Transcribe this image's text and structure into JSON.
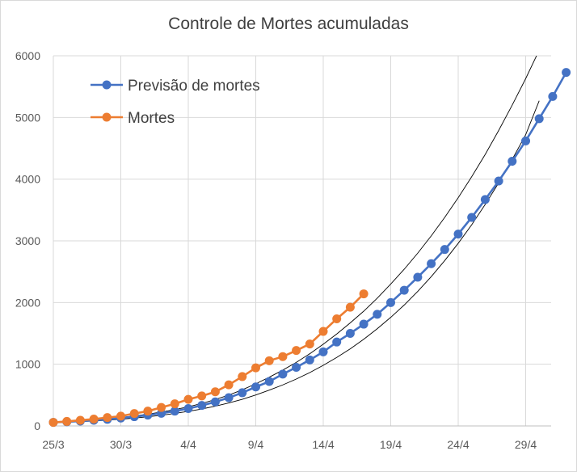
{
  "chart_data": {
    "type": "line",
    "title": "Controle de Mortes acumuladas",
    "xlabel": "",
    "ylabel": "",
    "ylim": [
      0,
      6000
    ],
    "y_ticks": [
      "0",
      "1000",
      "2000",
      "3000",
      "4000",
      "5000",
      "6000"
    ],
    "x_ticks": [
      "25/3",
      "30/3",
      "4/4",
      "9/4",
      "14/4",
      "19/4",
      "24/4",
      "29/4"
    ],
    "x_start": "25/3",
    "x_end": "30/4",
    "grid": true,
    "legend_position": "top-left",
    "series": [
      {
        "name": "Previsão de mortes",
        "color": "#4472c4",
        "values": [
          58,
          67,
          78,
          92,
          107,
          128,
          150,
          175,
          205,
          240,
          282,
          332,
          390,
          458,
          538,
          632,
          720,
          840,
          950,
          1070,
          1200,
          1360,
          1500,
          1650,
          1810,
          2000,
          2200,
          2410,
          2630,
          2860,
          3110,
          3380,
          3670,
          3970,
          4290,
          4620,
          4980,
          5340,
          5730
        ]
      },
      {
        "name": "Mortes",
        "color": "#ed7d31",
        "values": [
          57,
          73,
          92,
          111,
          136,
          159,
          201,
          240,
          299,
          359,
          431,
          486,
          553,
          667,
          800,
          941,
          1057,
          1124,
          1223,
          1328,
          1532,
          1736,
          1924,
          2141
        ]
      },
      {
        "name": "",
        "color": "#000000",
        "values": [
          60,
          70,
          82,
          97,
          115,
          137,
          162,
          191,
          225,
          264,
          310,
          364,
          428,
          500,
          585,
          683,
          790,
          905,
          1030,
          1170,
          1325,
          1490,
          1670,
          1860,
          2070,
          2300,
          2540,
          2800,
          3080,
          3380,
          3700,
          4040,
          4400,
          4790,
          5200,
          5630,
          6090
        ]
      },
      {
        "name": "",
        "color": "#000000",
        "values": [
          53,
          60,
          69,
          80,
          93,
          109,
          127,
          148,
          173,
          202,
          236,
          275,
          320,
          372,
          432,
          502,
          580,
          665,
          760,
          865,
          983,
          1110,
          1250,
          1405,
          1575,
          1760,
          1960,
          2180,
          2420,
          2680,
          2960,
          3260,
          3590,
          3940,
          4320,
          4720,
          5270
        ]
      }
    ]
  }
}
